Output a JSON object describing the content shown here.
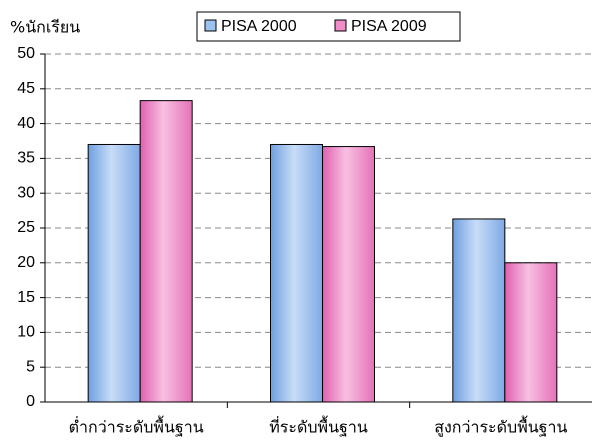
{
  "chart_data": {
    "type": "bar",
    "y_label": "%นักเรียน",
    "categories": [
      "ต่ำกว่าระดับพื้นฐาน",
      "ที่ระดับพื้นฐาน",
      "สูงกว่าระดับพื้นฐาน"
    ],
    "series": [
      {
        "name": "PISA 2000",
        "color": "#9cc3f0",
        "values": [
          37,
          37,
          26.3
        ]
      },
      {
        "name": "PISA 2009",
        "color": "#f08cc8",
        "values": [
          43.3,
          36.7,
          20
        ]
      }
    ],
    "ylim": [
      0,
      50
    ],
    "yticks": [
      0,
      5,
      10,
      15,
      20,
      25,
      30,
      35,
      40,
      45,
      50
    ],
    "grid": true
  }
}
